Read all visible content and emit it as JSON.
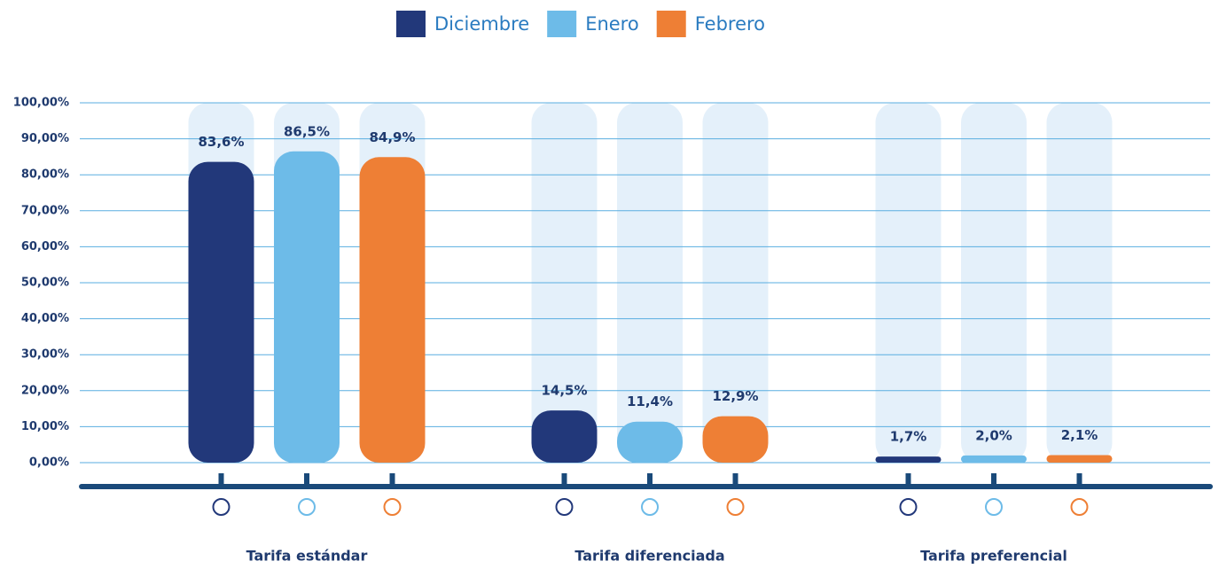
{
  "chart_data": {
    "type": "bar",
    "categories": [
      "Tarifa estándar",
      "Tarifa diferenciada",
      "Tarifa preferencial"
    ],
    "series": [
      {
        "name": "Diciembre",
        "color": "#22387a",
        "values": [
          83.6,
          14.5,
          1.7
        ],
        "value_labels": [
          "83,6%",
          "14,5%",
          "1,7%"
        ]
      },
      {
        "name": "Enero",
        "color": "#6dbbe8",
        "values": [
          86.5,
          11.4,
          2.0
        ],
        "value_labels": [
          "86,5%",
          "11,4%",
          "2,0%"
        ]
      },
      {
        "name": "Febrero",
        "color": "#ee7f35",
        "values": [
          84.9,
          12.9,
          2.1
        ],
        "value_labels": [
          "84,9%",
          "12,9%",
          "2,1%"
        ]
      }
    ],
    "ylim": [
      0,
      100
    ],
    "yticks": [
      {
        "value": 0,
        "label": "0,00%"
      },
      {
        "value": 10,
        "label": "10,00%"
      },
      {
        "value": 20,
        "label": "20,00%"
      },
      {
        "value": 30,
        "label": "30,00%"
      },
      {
        "value": 40,
        "label": "40,00%"
      },
      {
        "value": 50,
        "label": "50,00%"
      },
      {
        "value": 60,
        "label": "60,00%"
      },
      {
        "value": 70,
        "label": "70,00%"
      },
      {
        "value": 80,
        "label": "80,00%"
      },
      {
        "value": 90,
        "label": "90,00%"
      },
      {
        "value": 100,
        "label": "100,00%"
      }
    ],
    "grid": true
  }
}
